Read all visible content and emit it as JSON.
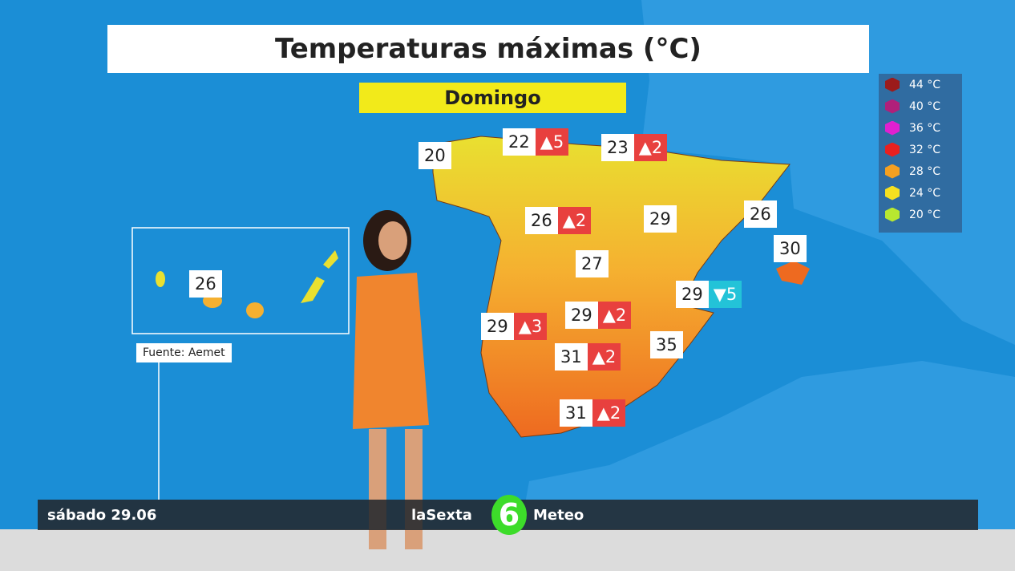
{
  "header": {
    "title": "Temperaturas máximas (°C)",
    "day": "Domingo"
  },
  "legend": [
    {
      "label": "44 °C",
      "color": "#9b1b1b"
    },
    {
      "label": "40 °C",
      "color": "#b0207a"
    },
    {
      "label": "36 °C",
      "color": "#e020d0"
    },
    {
      "label": "32 °C",
      "color": "#e82020"
    },
    {
      "label": "28 °C",
      "color": "#f5a020"
    },
    {
      "label": "24 °C",
      "color": "#f5e020"
    },
    {
      "label": "20 °C",
      "color": "#b8e830"
    }
  ],
  "labels": [
    {
      "temp": "20"
    },
    {
      "temp": "22",
      "change": "▲5",
      "color": "#e8403e"
    },
    {
      "temp": "23",
      "change": "▲2",
      "color": "#e8403e"
    },
    {
      "temp": "26",
      "change": "▲2",
      "color": "#e8403e"
    },
    {
      "temp": "29"
    },
    {
      "temp": "26"
    },
    {
      "temp": "30"
    },
    {
      "temp": "27"
    },
    {
      "temp": "29",
      "change": "▼5",
      "color": "#23c3d8"
    },
    {
      "temp": "29",
      "change": "▲3",
      "color": "#e8403e"
    },
    {
      "temp": "29",
      "change": "▲2",
      "color": "#e8403e"
    },
    {
      "temp": "31",
      "change": "▲2",
      "color": "#e8403e"
    },
    {
      "temp": "35"
    },
    {
      "temp": "31",
      "change": "▲2",
      "color": "#e8403e"
    }
  ],
  "canary": {
    "temp": "26"
  },
  "source": "Fuente: Aemet",
  "footer": {
    "date": "sábado 29.06",
    "brand": "laSexta",
    "logo": "6",
    "section": "Meteo"
  }
}
